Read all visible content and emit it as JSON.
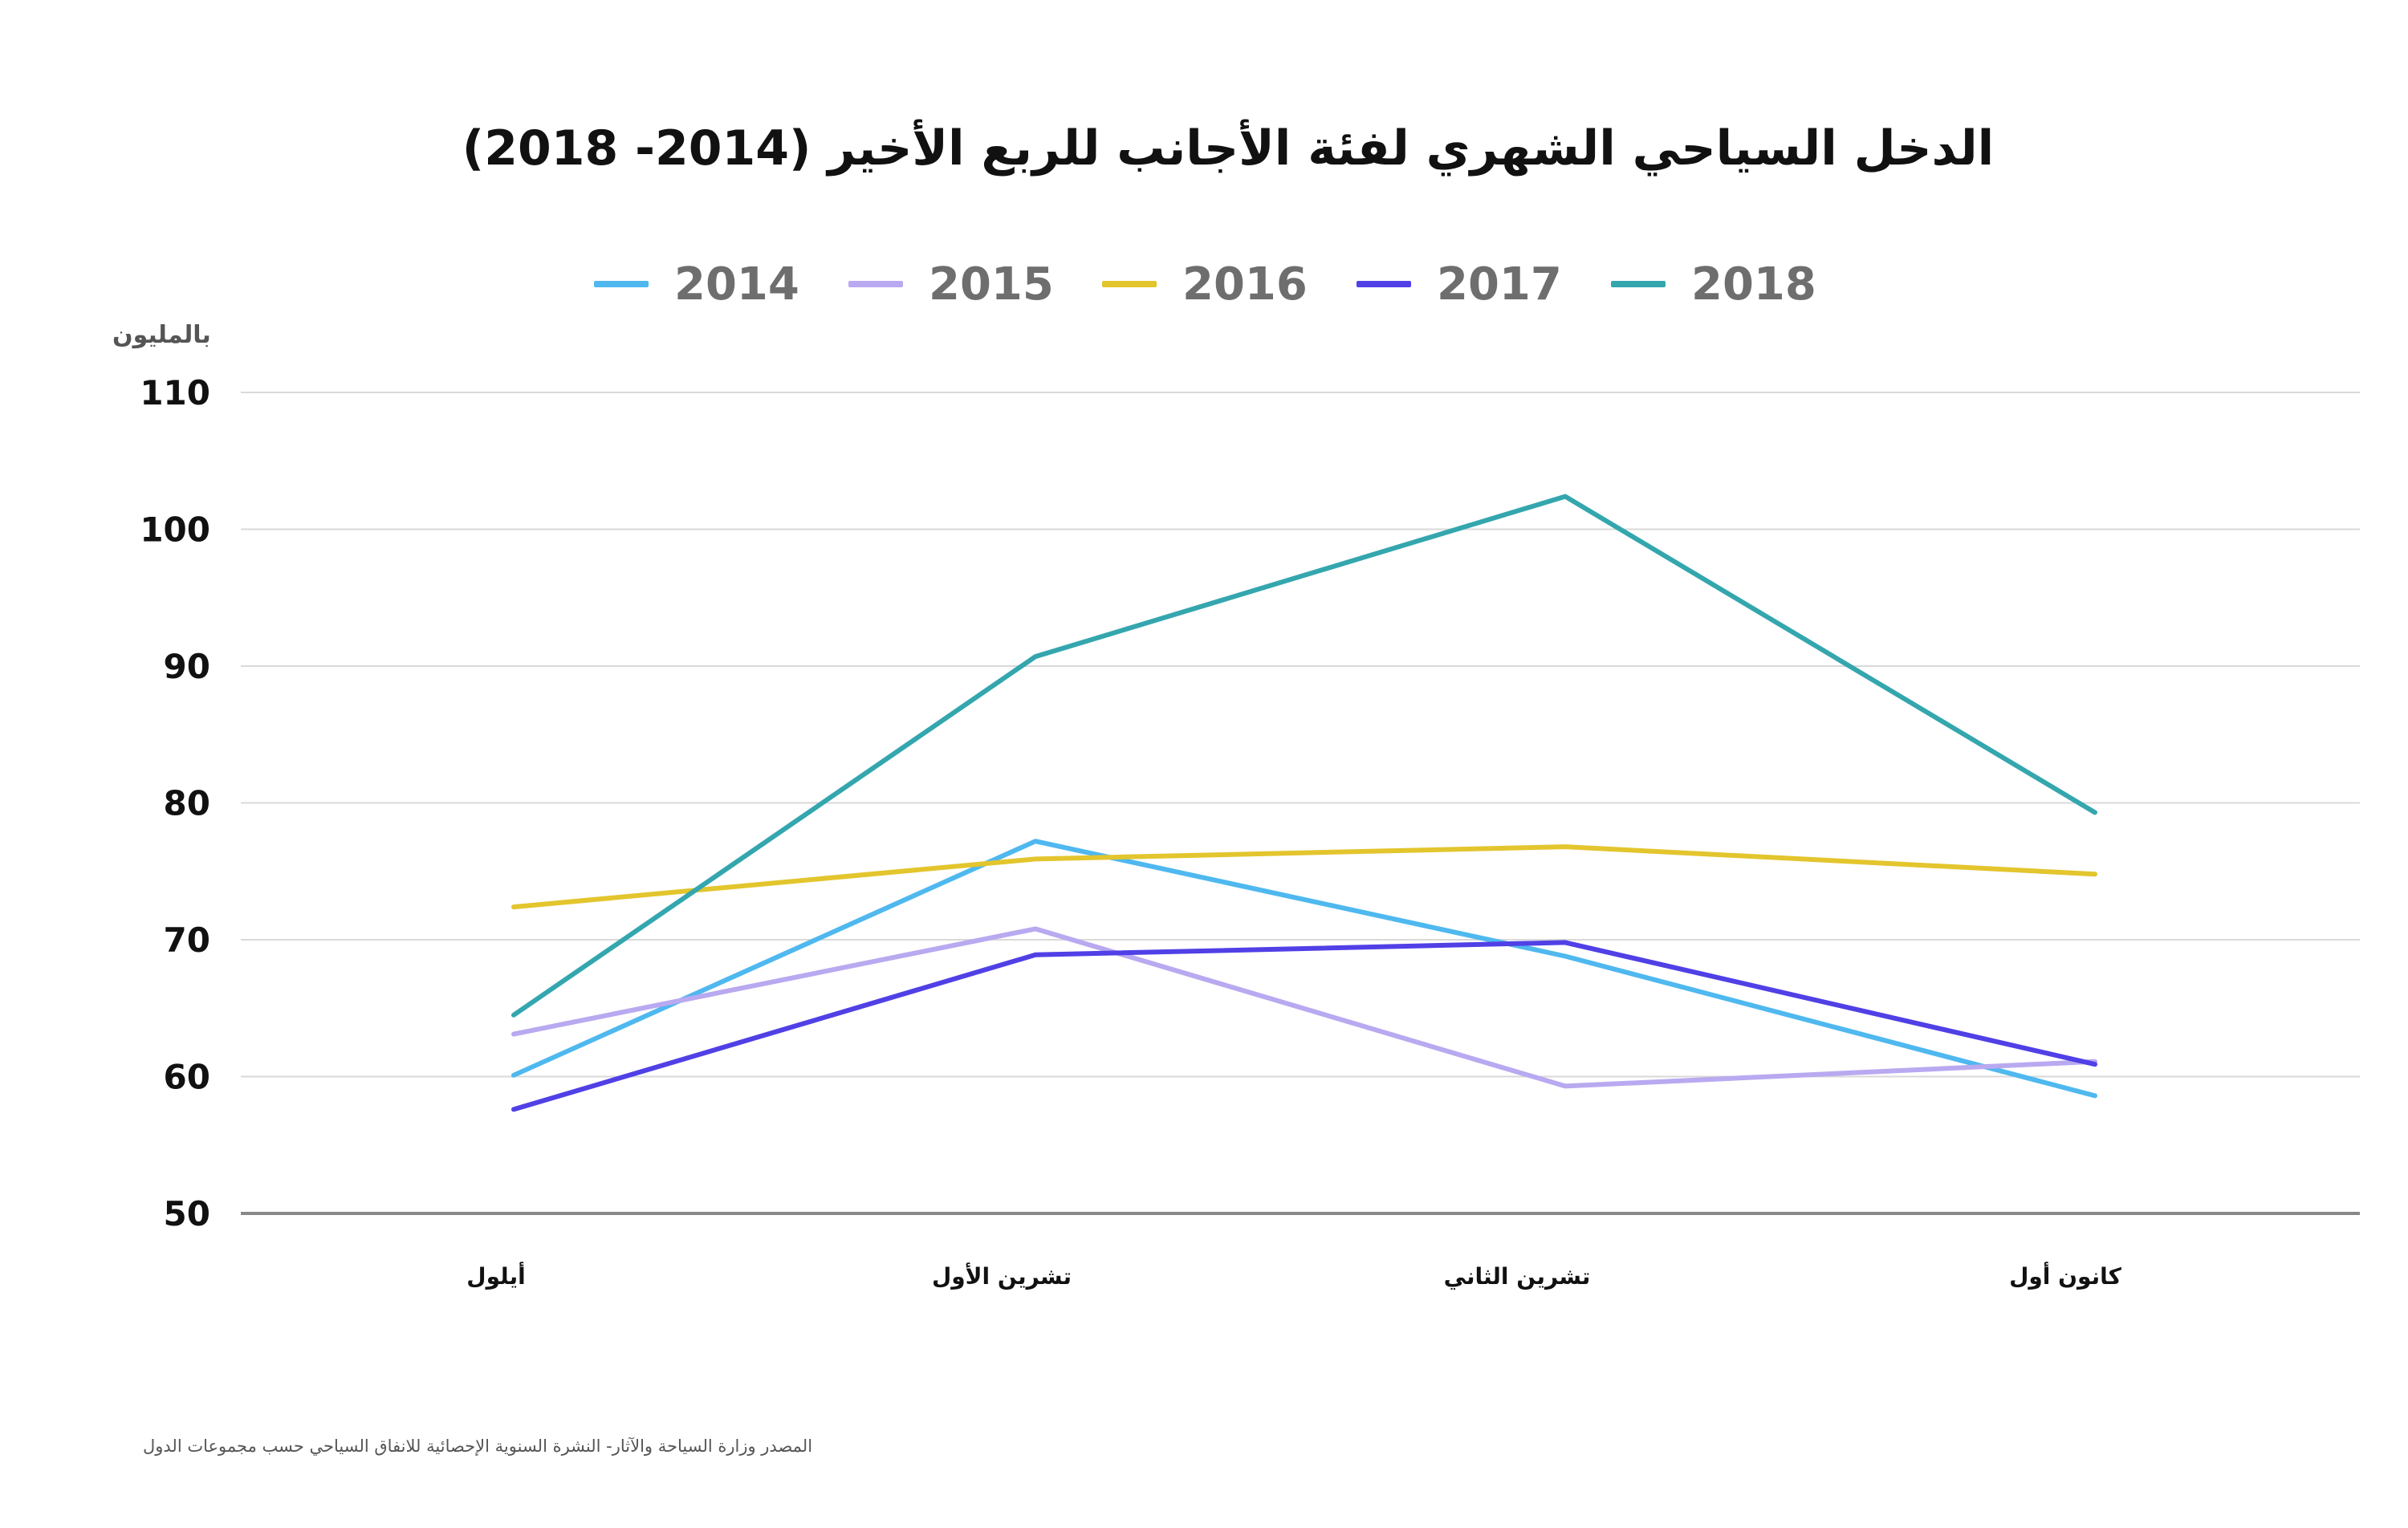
{
  "chart_data": {
    "type": "line",
    "title": "الدخل السياحي الشهري لفئة الأجانب للربع الأخير (2014- 2018)",
    "ylabel": "بالمليون",
    "xlabel": "",
    "ylim": [
      50,
      110
    ],
    "yticks": [
      "50",
      "60",
      "70",
      "80",
      "90",
      "100",
      "110"
    ],
    "categories": [
      "أيلول",
      "تشرين الأول",
      "تشرين الثاني",
      "كانون أول"
    ],
    "series": [
      {
        "name": "2014",
        "color": "#4fb8ef",
        "values": [
          60.1,
          77.2,
          68.8,
          58.6
        ]
      },
      {
        "name": "2015",
        "color": "#b9a9f0",
        "values": [
          63.1,
          70.8,
          59.3,
          61.1
        ]
      },
      {
        "name": "2016",
        "color": "#e3c52d",
        "values": [
          72.4,
          75.9,
          76.8,
          74.8
        ]
      },
      {
        "name": "2017",
        "color": "#5040e6",
        "values": [
          57.6,
          68.9,
          69.8,
          60.9
        ]
      },
      {
        "name": "2018",
        "color": "#34a6ae",
        "values": [
          64.5,
          90.7,
          102.4,
          79.3
        ]
      }
    ],
    "grid": true,
    "legend_position": "top"
  },
  "source_note": "المصدر وزارة السياحة والآثار- النشرة السنوية الإحصائية للانفاق السياحي حسب مجموعات الدول"
}
